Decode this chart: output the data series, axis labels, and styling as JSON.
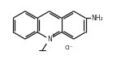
{
  "bg_color": "#ffffff",
  "line_color": "#1a1a1a",
  "lw": 0.9,
  "font_size_N": 5.5,
  "font_size_plus": 4.5,
  "font_size_NH2": 5.5,
  "font_size_Cl": 5.0,
  "N_label": "N",
  "plus_label": "+",
  "NH2_label": "NH₂",
  "Cl_label": "Cl⁻",
  "figsize": [
    1.44,
    0.74
  ],
  "dpi": 100,
  "xmin": -3.2,
  "xmax": 4.5,
  "ymin": -2.5,
  "ymax": 1.8
}
